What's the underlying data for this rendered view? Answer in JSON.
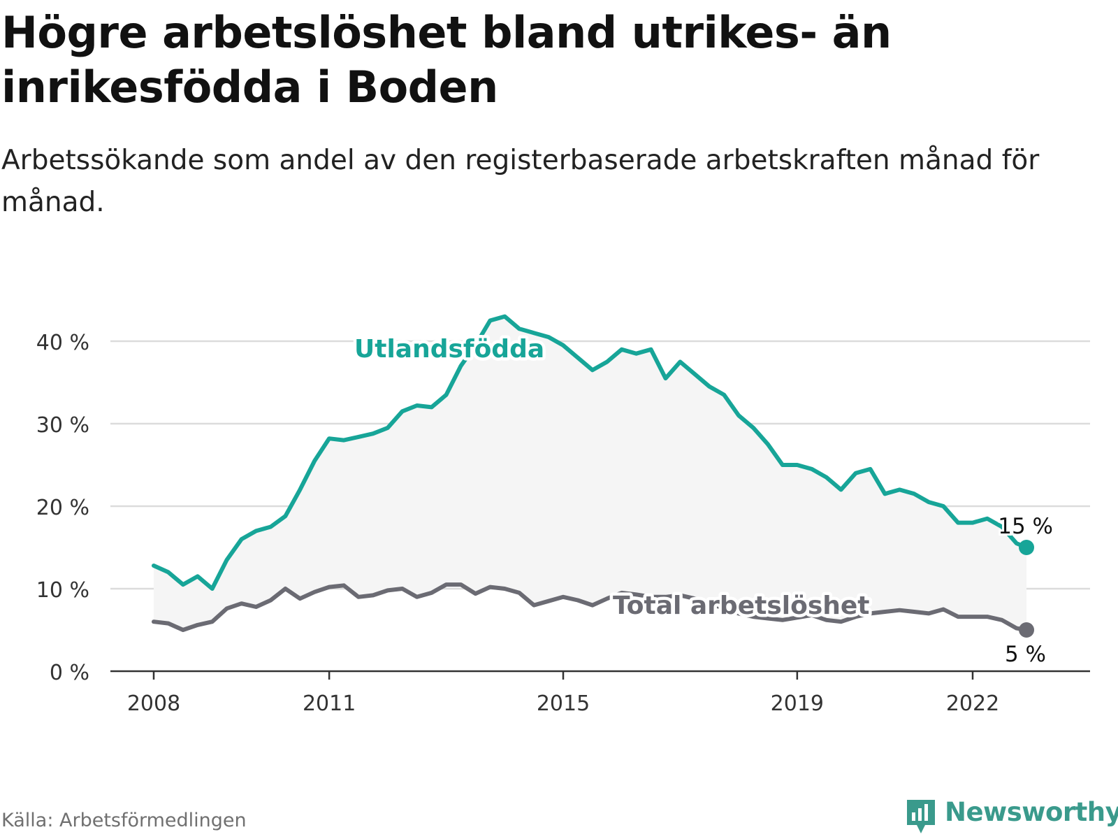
{
  "title": "Högre arbetslöshet bland utrikes- än inrikesfödda i Boden",
  "subtitle": "Arbetssökande som andel av den registerbaserade arbetskraften månad för månad.",
  "source": "Källa: Arbetsförmedlingen",
  "brand": {
    "name": "Newsworthy",
    "icon": "newsworthy-logo-icon"
  },
  "colors": {
    "foreign": "#17a598",
    "total": "#6b6b73",
    "band": "#f5f5f5",
    "grid": "#dcdcdc",
    "axis": "#333333"
  },
  "chart_data": {
    "type": "line",
    "title": "Högre arbetslöshet bland utrikes- än inrikesfödda i Boden",
    "xlabel": "",
    "ylabel": "",
    "xlim": [
      2008.0,
      2023.6
    ],
    "ylim": [
      0,
      45
    ],
    "y_ticks": [
      0,
      10,
      20,
      30,
      40
    ],
    "y_tick_labels": [
      "0 %",
      "10 %",
      "20 %",
      "30 %",
      "40 %"
    ],
    "x_ticks": [
      2008,
      2011,
      2015,
      2019,
      2022
    ],
    "x_tick_labels": [
      "2008",
      "2011",
      "2015",
      "2019",
      "2022"
    ],
    "grid": true,
    "band_between_series": true,
    "series": [
      {
        "name": "Utlandsfödda",
        "label": "Utlandsfödda",
        "end_label": "15 %",
        "x": [
          2008.0,
          2008.25,
          2008.5,
          2008.75,
          2009.0,
          2009.25,
          2009.5,
          2009.75,
          2010.0,
          2010.25,
          2010.5,
          2010.75,
          2011.0,
          2011.25,
          2011.5,
          2011.75,
          2012.0,
          2012.25,
          2012.5,
          2012.75,
          2013.0,
          2013.25,
          2013.5,
          2013.75,
          2014.0,
          2014.25,
          2014.5,
          2014.75,
          2015.0,
          2015.25,
          2015.5,
          2015.75,
          2016.0,
          2016.25,
          2016.5,
          2016.75,
          2017.0,
          2017.25,
          2017.5,
          2017.75,
          2018.0,
          2018.25,
          2018.5,
          2018.75,
          2019.0,
          2019.25,
          2019.5,
          2019.75,
          2020.0,
          2020.25,
          2020.5,
          2020.75,
          2021.0,
          2021.25,
          2021.5,
          2021.75,
          2022.0,
          2022.25,
          2022.5,
          2022.75,
          2022.92
        ],
        "values": [
          12.8,
          12.0,
          10.5,
          11.5,
          10.0,
          13.5,
          16.0,
          17.0,
          17.5,
          18.8,
          22.0,
          25.5,
          28.2,
          28.0,
          28.4,
          28.8,
          29.5,
          31.5,
          32.2,
          32.0,
          33.5,
          37.0,
          39.5,
          42.5,
          43.0,
          41.5,
          41.0,
          40.5,
          39.5,
          38.0,
          36.5,
          37.5,
          39.0,
          38.5,
          39.0,
          35.5,
          37.5,
          36.0,
          34.5,
          33.5,
          31.0,
          29.5,
          27.5,
          25.0,
          25.0,
          24.5,
          23.5,
          22.0,
          24.0,
          24.5,
          21.5,
          22.0,
          21.5,
          20.5,
          20.0,
          18.0,
          18.0,
          18.5,
          17.5,
          15.5,
          15.0
        ]
      },
      {
        "name": "Total arbetslöshet",
        "label": "Total arbetslöshet",
        "end_label": "5 %",
        "x": [
          2008.0,
          2008.25,
          2008.5,
          2008.75,
          2009.0,
          2009.25,
          2009.5,
          2009.75,
          2010.0,
          2010.25,
          2010.5,
          2010.75,
          2011.0,
          2011.25,
          2011.5,
          2011.75,
          2012.0,
          2012.25,
          2012.5,
          2012.75,
          2013.0,
          2013.25,
          2013.5,
          2013.75,
          2014.0,
          2014.25,
          2014.5,
          2014.75,
          2015.0,
          2015.25,
          2015.5,
          2015.75,
          2016.0,
          2016.25,
          2016.5,
          2016.75,
          2017.0,
          2017.25,
          2017.5,
          2017.75,
          2018.0,
          2018.25,
          2018.5,
          2018.75,
          2019.0,
          2019.25,
          2019.5,
          2019.75,
          2020.0,
          2020.25,
          2020.5,
          2020.75,
          2021.0,
          2021.25,
          2021.5,
          2021.75,
          2022.0,
          2022.25,
          2022.5,
          2022.75,
          2022.92
        ],
        "values": [
          6.0,
          5.8,
          5.0,
          5.6,
          6.0,
          7.6,
          8.2,
          7.8,
          8.6,
          10.0,
          8.8,
          9.6,
          10.2,
          10.4,
          9.0,
          9.2,
          9.8,
          10.0,
          9.0,
          9.5,
          10.5,
          10.5,
          9.4,
          10.2,
          10.0,
          9.5,
          8.0,
          8.5,
          9.0,
          8.6,
          8.0,
          8.8,
          9.5,
          9.3,
          9.0,
          9.0,
          9.2,
          8.8,
          8.2,
          7.6,
          7.0,
          6.6,
          6.4,
          6.2,
          6.5,
          6.8,
          6.2,
          6.0,
          6.6,
          7.0,
          7.2,
          7.4,
          7.2,
          7.0,
          7.5,
          6.6,
          6.6,
          6.6,
          6.2,
          5.2,
          5.0
        ]
      }
    ]
  }
}
